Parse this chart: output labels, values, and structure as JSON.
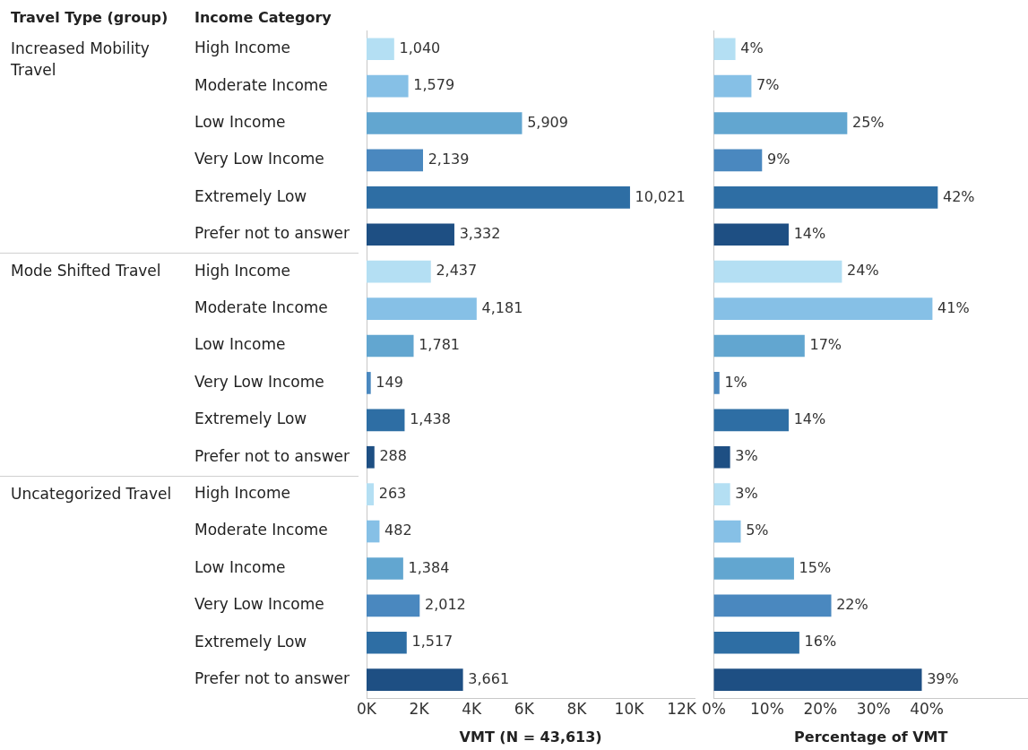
{
  "chart_data": [
    {
      "type": "bar",
      "orientation": "horizontal",
      "xlabel": "VMT (N = 43,613)",
      "annotations": [
        "Travel Type (group)",
        "Income Category",
        "Increased Mobility Travel",
        "Mode Shifted Travel",
        "Uncategorized Travel"
      ],
      "categories": [
        "High Income",
        "Moderate Income",
        "Low Income",
        "Very Low Income",
        "Extremely Low",
        "Prefer not to answer",
        "High Income",
        "Moderate Income",
        "Low Income",
        "Very Low Income",
        "Extremely Low",
        "Prefer not to answer",
        "High Income",
        "Moderate Income",
        "Low Income",
        "Very Low Income",
        "Extremely Low",
        "Prefer not to answer"
      ],
      "values": [
        1040,
        1579,
        5909,
        2139,
        10021,
        3332,
        2437,
        4181,
        1781,
        149,
        1438,
        288,
        263,
        482,
        1384,
        2012,
        1517,
        3661
      ],
      "value_labels": [
        "1,040",
        "1,579",
        "5,909",
        "2,139",
        "10,021",
        "3,332",
        "2,437",
        "4,181",
        "1,781",
        "149",
        "1,438",
        "288",
        "263",
        "482",
        "1,384",
        "2,012",
        "1,517",
        "3,661"
      ],
      "colors": [
        "#b4dff3",
        "#86c0e6",
        "#62a6d0",
        "#4a88bf",
        "#2e6ea4",
        "#1e4f83",
        "#b4dff3",
        "#86c0e6",
        "#62a6d0",
        "#4a88bf",
        "#2e6ea4",
        "#1e4f83",
        "#b4dff3",
        "#86c0e6",
        "#62a6d0",
        "#4a88bf",
        "#2e6ea4",
        "#1e4f83"
      ],
      "xlim": [
        0,
        12500
      ],
      "xticks": [
        {
          "value": 0,
          "label": "0K"
        },
        {
          "value": 2000,
          "label": "2K"
        },
        {
          "value": 4000,
          "label": "4K"
        },
        {
          "value": 6000,
          "label": "6K"
        },
        {
          "value": 8000,
          "label": "8K"
        },
        {
          "value": 10000,
          "label": "10K"
        },
        {
          "value": 12000,
          "label": "12K"
        }
      ]
    },
    {
      "type": "bar",
      "orientation": "horizontal",
      "xlabel": "Percentage of VMT",
      "tick_labels": "x",
      "categories": [
        null,
        null,
        null,
        null,
        null,
        null,
        null,
        null,
        null,
        null,
        null,
        null,
        null,
        null,
        null,
        null,
        null,
        null
      ],
      "values": [
        4,
        7,
        25,
        9,
        42,
        14,
        24,
        41,
        17,
        1,
        14,
        3,
        3,
        5,
        15,
        22,
        16,
        39
      ],
      "value_labels": [
        "4%",
        "7%",
        "25%",
        "9%",
        "42%",
        "14%",
        "24%",
        "41%",
        "17%",
        "1%",
        "14%",
        "3%",
        "3%",
        "5%",
        "15%",
        "22%",
        "16%",
        "39%"
      ],
      "colors": [
        "#b4dff3",
        "#86c0e6",
        "#62a6d0",
        "#4a88bf",
        "#2e6ea4",
        "#1e4f83",
        "#b4dff3",
        "#86c0e6",
        "#62a6d0",
        "#4a88bf",
        "#2e6ea4",
        "#1e4f83",
        "#b4dff3",
        "#86c0e6",
        "#62a6d0",
        "#4a88bf",
        "#2e6ea4",
        "#1e4f83"
      ],
      "xlim": [
        0,
        59
      ],
      "xticks": [
        {
          "value": 0,
          "label": "0%"
        },
        {
          "value": 10,
          "label": "10%"
        },
        {
          "value": 20,
          "label": "20%"
        },
        {
          "value": 30,
          "label": "30%"
        },
        {
          "value": 40,
          "label": "40%"
        }
      ]
    }
  ]
}
